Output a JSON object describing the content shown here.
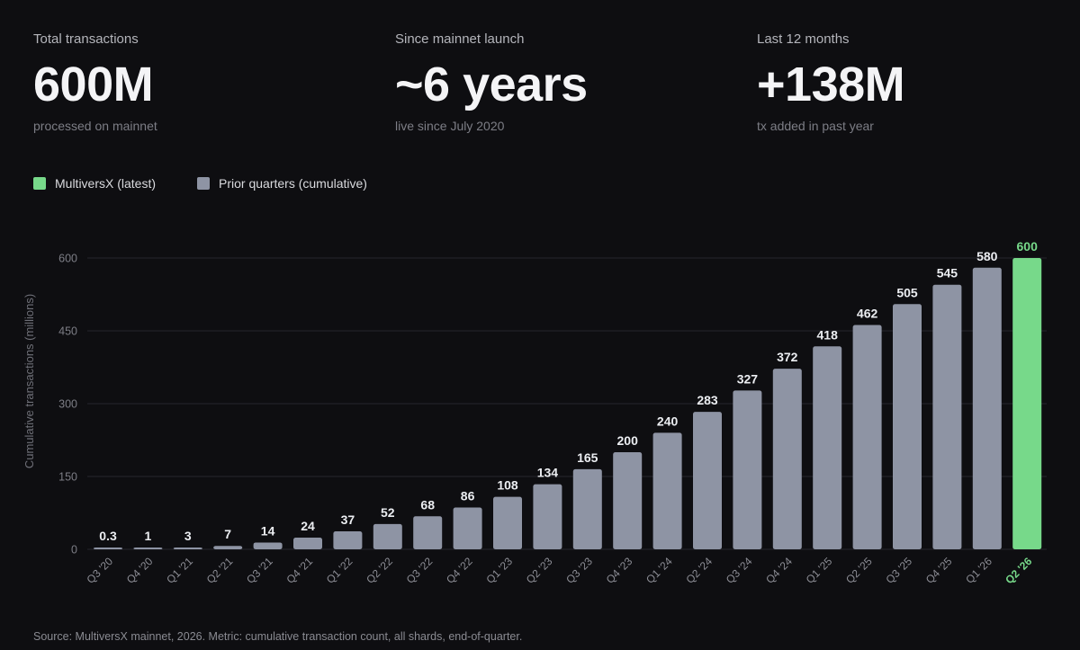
{
  "stats": [
    {
      "label": "Total transactions",
      "value": "600M",
      "sub": "processed on mainnet"
    },
    {
      "label": "Since mainnet launch",
      "value": "~6 years",
      "sub": "live since July 2020"
    },
    {
      "label": "Last 12 months",
      "value": "+138M",
      "sub": "tx added in past year"
    }
  ],
  "legend": [
    {
      "label": "MultiversX (latest)",
      "color": "#77d98a"
    },
    {
      "label": "Prior quarters (cumulative)",
      "color": "#8e94a4"
    }
  ],
  "footer": "Source: MultiversX mainnet, 2026. Metric: cumulative transaction count, all shards, end-of-quarter.",
  "colors": {
    "background": "#0e0e11",
    "bar_prior": "#8e94a4",
    "bar_latest": "#77d98a",
    "grid": "#26272d",
    "axis_text": "#7d7e86"
  },
  "chart_data": {
    "type": "bar",
    "title": "",
    "xlabel": "",
    "ylabel": "Cumulative transactions (millions)",
    "ylim": [
      0,
      600
    ],
    "yticks": [
      0,
      150,
      300,
      450,
      600
    ],
    "grid": true,
    "legend_position": "top-left",
    "categories": [
      "Q3 '20",
      "Q4 '20",
      "Q1 '21",
      "Q2 '21",
      "Q3 '21",
      "Q4 '21",
      "Q1 '22",
      "Q2 '22",
      "Q3 '22",
      "Q4 '22",
      "Q1 '23",
      "Q2 '23",
      "Q3 '23",
      "Q4 '23",
      "Q1 '24",
      "Q2 '24",
      "Q3 '24",
      "Q4 '24",
      "Q1 '25",
      "Q2 '25",
      "Q3 '25",
      "Q4 '25",
      "Q1 '26",
      "Q2 '26"
    ],
    "values": [
      0.3,
      1,
      3,
      7,
      14,
      24,
      37,
      52,
      68,
      86,
      108,
      134,
      165,
      200,
      240,
      283,
      327,
      372,
      418,
      462,
      505,
      545,
      580,
      600
    ],
    "data_labels": [
      "0.3",
      "1",
      "3",
      "7",
      "14",
      "24",
      "37",
      "52",
      "68",
      "86",
      "108",
      "134",
      "165",
      "200",
      "240",
      "283",
      "327",
      "372",
      "418",
      "462",
      "505",
      "545",
      "580",
      "600"
    ],
    "highlight_index": 23,
    "series": [
      {
        "name": "Prior quarters (cumulative)",
        "color": "#8e94a4",
        "indices": "0-22"
      },
      {
        "name": "MultiversX (latest)",
        "color": "#77d98a",
        "indices": "23"
      }
    ]
  }
}
